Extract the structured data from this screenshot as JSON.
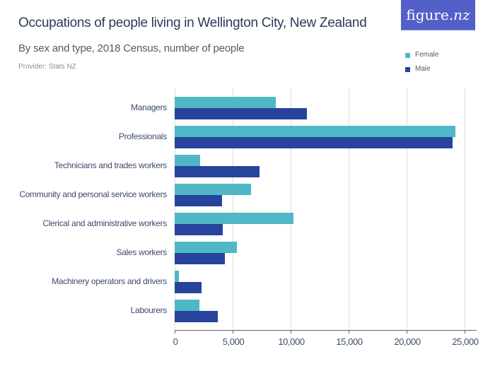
{
  "header": {
    "title": "Occupations of people living in Wellington City, New Zealand",
    "subtitle": "By sex and type, 2018 Census, number of people",
    "provider": "Provider: Stats NZ",
    "logo_main": "figure.",
    "logo_nz": "nz"
  },
  "legend": [
    {
      "label": "Female",
      "color": "#4fb7c5"
    },
    {
      "label": "Male",
      "color": "#27439c"
    }
  ],
  "colors": {
    "female": "#4fb7c5",
    "male": "#27439c",
    "logo_bg": "#5360c7"
  },
  "axis": {
    "ticks": [
      {
        "value": 0,
        "label": "0"
      },
      {
        "value": 5000,
        "label": "5,000"
      },
      {
        "value": 10000,
        "label": "10,000"
      },
      {
        "value": 15000,
        "label": "15,000"
      },
      {
        "value": 20000,
        "label": "20,000"
      },
      {
        "value": 25000,
        "label": "25,000"
      }
    ]
  },
  "chart_data": {
    "type": "bar",
    "orientation": "horizontal",
    "title": "Occupations of people living in Wellington City, New Zealand",
    "subtitle": "By sex and type, 2018 Census, number of people",
    "xlabel": "",
    "ylabel": "",
    "xlim": [
      0,
      26000
    ],
    "grid": true,
    "legend_position": "top-right",
    "categories": [
      "Managers",
      "Professionals",
      "Technicians and trades workers",
      "Community and personal service workers",
      "Clerical and administrative workers",
      "Sales workers",
      "Machinery operators and drivers",
      "Labourers"
    ],
    "series": [
      {
        "name": "Female",
        "values": [
          8720,
          24210,
          2190,
          6560,
          10240,
          5350,
          390,
          2110
        ]
      },
      {
        "name": "Male",
        "values": [
          11420,
          23990,
          7300,
          4110,
          4150,
          4310,
          2300,
          3740
        ]
      }
    ]
  }
}
